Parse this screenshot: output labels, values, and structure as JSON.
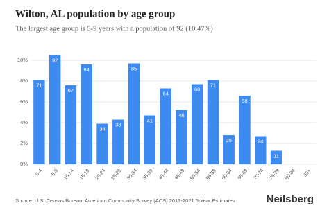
{
  "chart_data": {
    "type": "bar",
    "title": "Wilton, AL population by age group",
    "subtitle": "The largest age group is 5-9 years with a population of 92 (10.47%)",
    "categories": [
      "0-4",
      "5-9",
      "10-14",
      "15-19",
      "20-24",
      "25-29",
      "30-34",
      "35-39",
      "40-44",
      "45-49",
      "50-54",
      "55-59",
      "60-64",
      "65-69",
      "70-74",
      "75-79",
      "80-84",
      "85+"
    ],
    "values": [
      8.1,
      10.5,
      7.6,
      9.6,
      3.9,
      4.3,
      9.7,
      4.7,
      7.3,
      5.2,
      7.7,
      8.1,
      2.8,
      6.6,
      2.7,
      1.3,
      0,
      0
    ],
    "populations": [
      71,
      92,
      67,
      84,
      34,
      38,
      85,
      41,
      64,
      46,
      68,
      71,
      25,
      58,
      24,
      11,
      null,
      null
    ],
    "color": "#3d8af0",
    "ylim": [
      0,
      11
    ],
    "yticks": [
      {
        "value": 0,
        "label": "0%"
      },
      {
        "value": 2,
        "label": "2%"
      },
      {
        "value": 4,
        "label": "4%"
      },
      {
        "value": 6,
        "label": "6%"
      },
      {
        "value": 8,
        "label": "8%"
      },
      {
        "value": 10,
        "label": "10%"
      }
    ],
    "grid": true,
    "source": "Source: U.S. Census Bureau, American Community Survey (ACS) 2017-2021 5-Year Estimates",
    "brand": "Neilsberg"
  }
}
